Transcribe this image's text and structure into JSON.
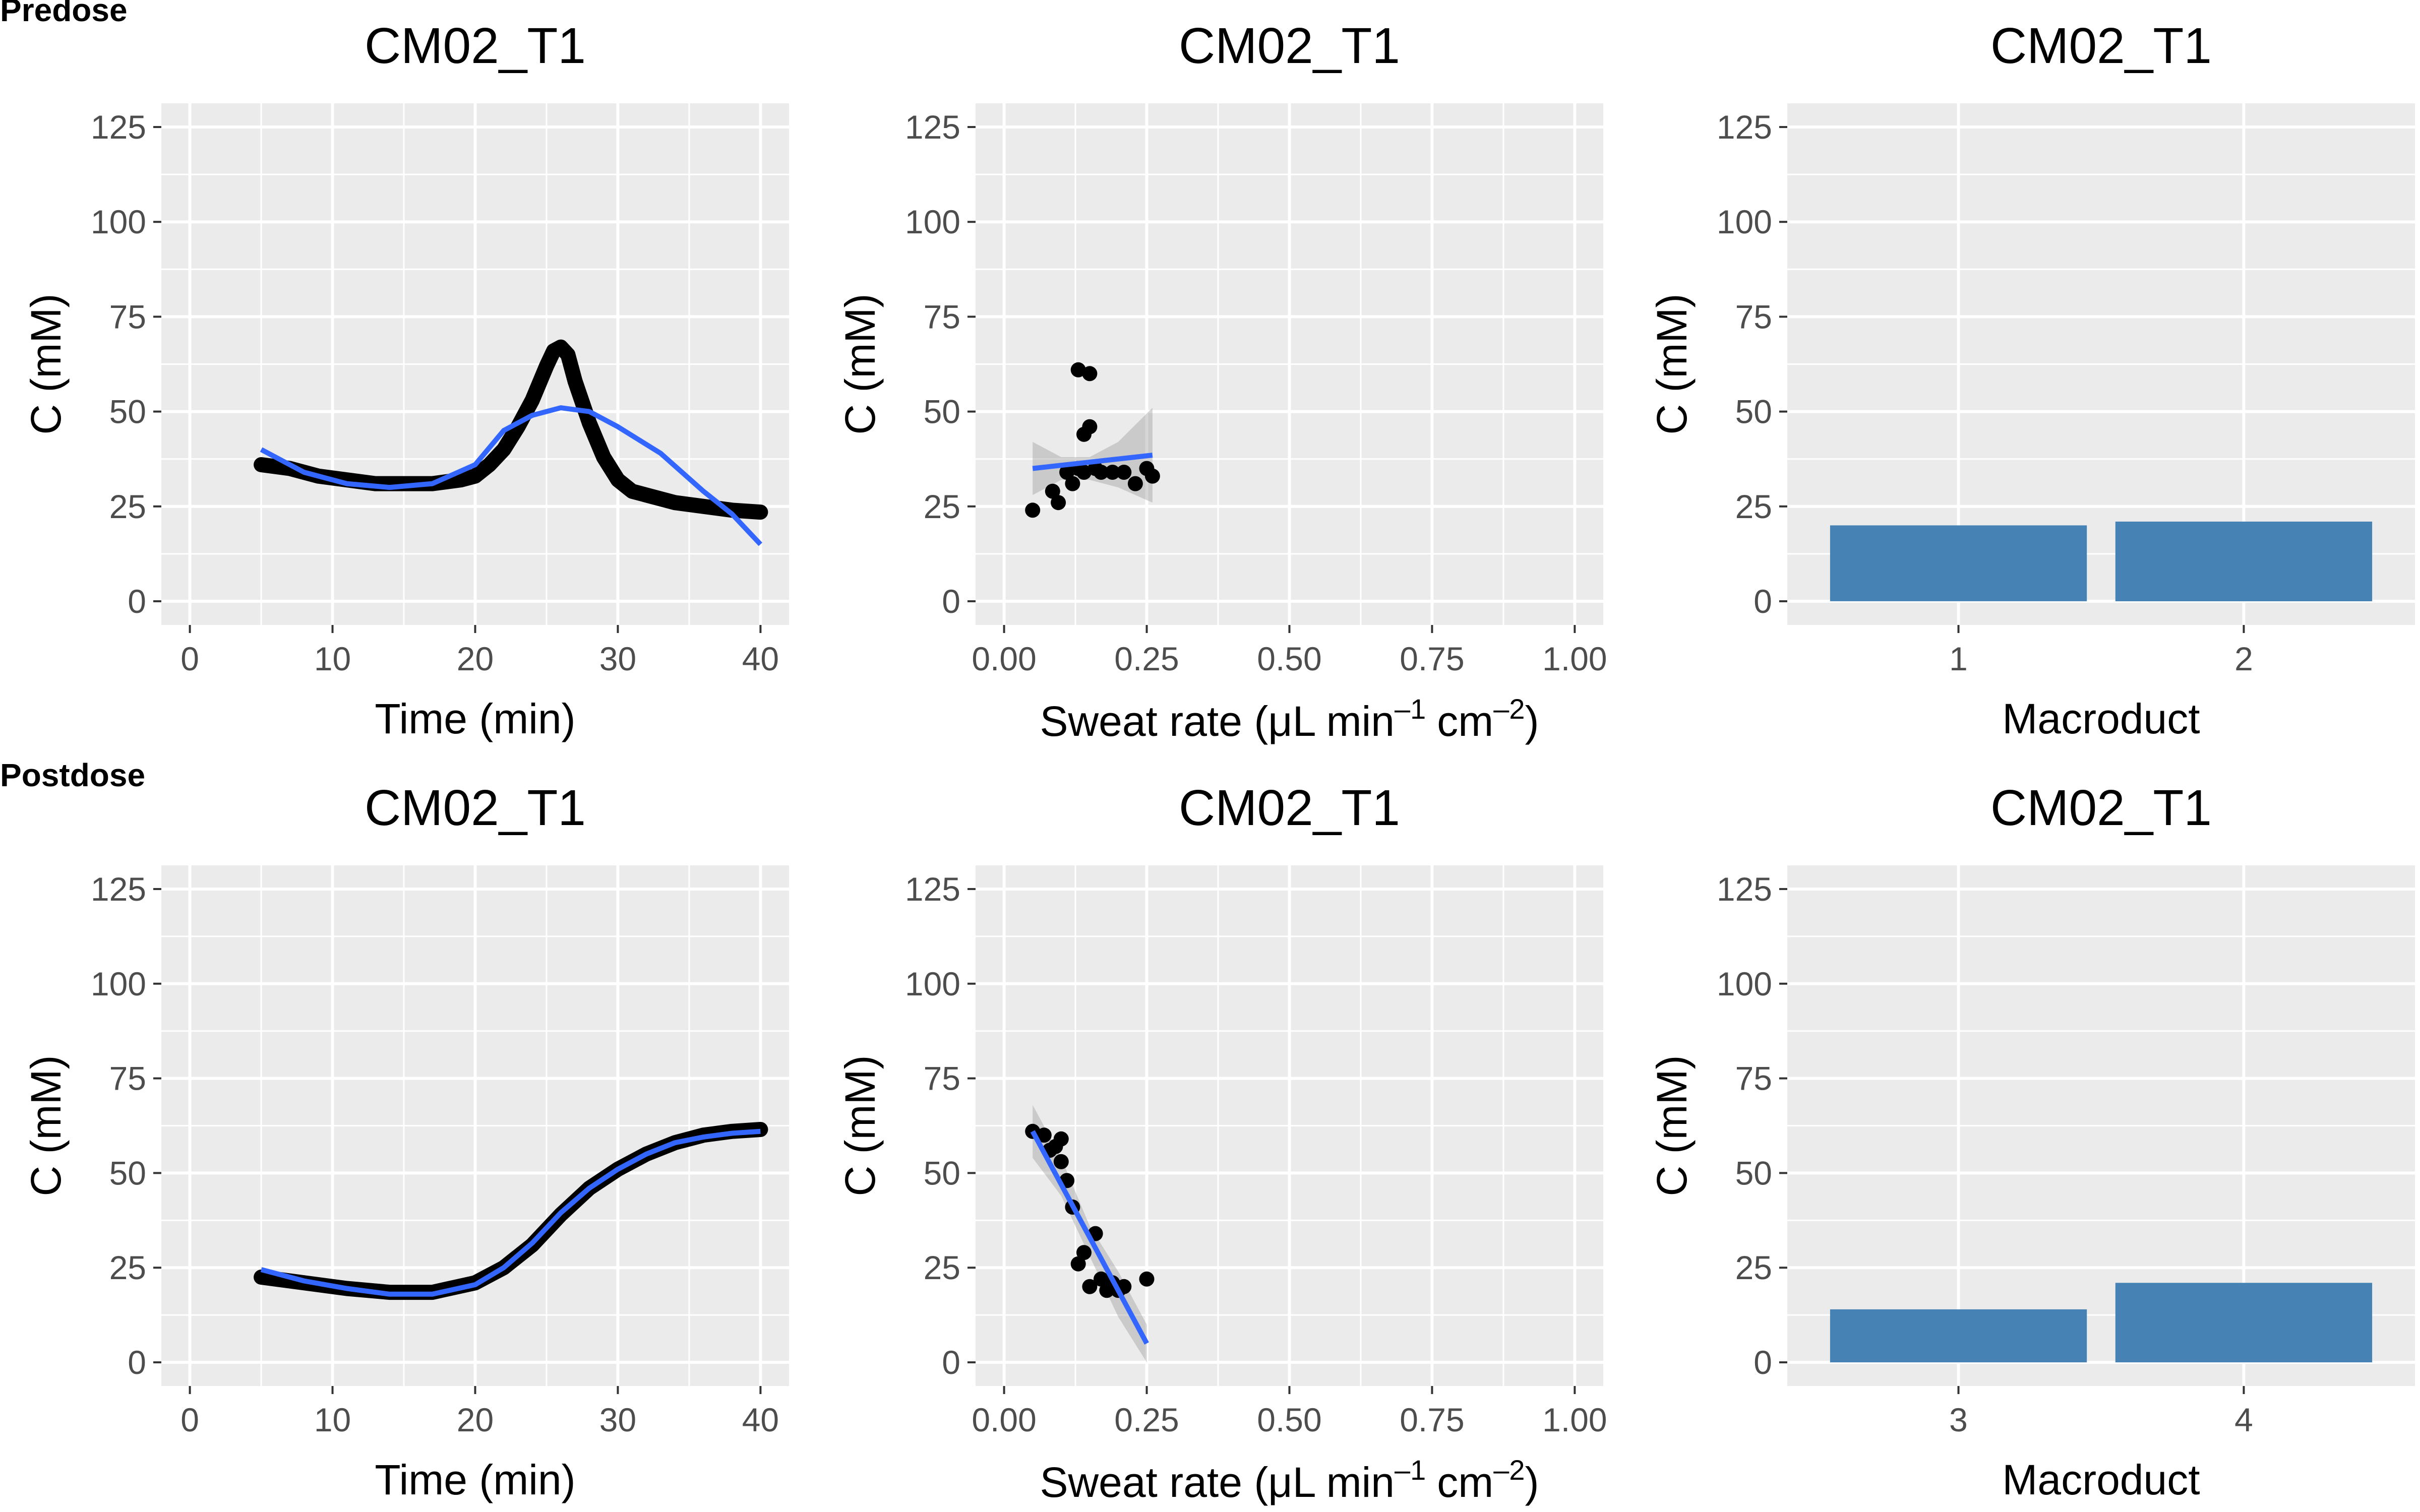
{
  "rows": [
    {
      "label": "Predose"
    },
    {
      "label": "Postdose"
    }
  ],
  "colors": {
    "panel_bg": "#ebebeb",
    "grid": "#ffffff",
    "smooth": "#3366ff",
    "bar": "#4682b4",
    "points": "#000000",
    "ribbon": "#999999",
    "tick": "#4d4d4d"
  },
  "chart_data": [
    {
      "id": "pre-time",
      "row": 0,
      "col": 0,
      "type": "line",
      "title": "CM02_T1",
      "xlabel": "Time (min)",
      "ylabel": "C (mM)",
      "xlim": [
        0,
        40
      ],
      "ylim": [
        0,
        125
      ],
      "x_ticks": [
        0,
        10,
        20,
        30,
        40
      ],
      "y_ticks": [
        0,
        25,
        50,
        75,
        100,
        125
      ],
      "grid": true,
      "series": [
        {
          "role": "observed",
          "x": [
            5,
            7,
            9,
            11,
            13,
            15,
            17,
            19,
            20,
            21,
            22,
            23,
            24,
            25,
            25.5,
            26,
            26.5,
            27,
            28,
            29,
            30,
            31,
            32,
            34,
            36,
            38,
            40
          ],
          "y": [
            36,
            35,
            33,
            32,
            31,
            31,
            31,
            32,
            33,
            36,
            40,
            46,
            53,
            62,
            66,
            67,
            65,
            58,
            47,
            38,
            32,
            29,
            28,
            26,
            25,
            24,
            23.5
          ]
        },
        {
          "role": "smooth",
          "x": [
            5,
            8,
            11,
            14,
            17,
            20,
            22,
            24,
            26,
            28,
            30,
            33,
            36,
            38,
            40
          ],
          "y": [
            40,
            34,
            31,
            30,
            31,
            36,
            45,
            49,
            51,
            50,
            46,
            39,
            29,
            23,
            15
          ]
        }
      ]
    },
    {
      "id": "pre-sweat",
      "row": 0,
      "col": 1,
      "type": "scatter",
      "title": "CM02_T1",
      "xlabel": "Sweat rate (μL min",
      "xlabel_parts": [
        "–1",
        "cm",
        "–2"
      ],
      "ylabel": "C (mM)",
      "xlim": [
        0,
        1
      ],
      "ylim": [
        0,
        125
      ],
      "x_ticks": [
        0,
        0.25,
        0.5,
        0.75,
        1
      ],
      "x_tick_labels": [
        "0.00",
        "0.25",
        "0.50",
        "0.75",
        "1.00"
      ],
      "y_ticks": [
        0,
        25,
        50,
        75,
        100,
        125
      ],
      "grid": true,
      "points": {
        "x": [
          0.05,
          0.085,
          0.095,
          0.11,
          0.12,
          0.13,
          0.14,
          0.15,
          0.17,
          0.19,
          0.21,
          0.23,
          0.25,
          0.26,
          0.13,
          0.15,
          0.14,
          0.16
        ],
        "y": [
          24,
          29,
          26,
          34,
          31,
          61,
          34,
          60,
          34,
          34,
          34,
          31,
          35,
          33,
          35,
          46,
          44,
          35
        ]
      },
      "fit": {
        "x": [
          0.05,
          0.26
        ],
        "y": [
          35,
          38.5
        ]
      },
      "ribbon": {
        "x": [
          0.05,
          0.1,
          0.15,
          0.2,
          0.26
        ],
        "lower": [
          28,
          32,
          32,
          30,
          26
        ],
        "upper": [
          42,
          38,
          38,
          42,
          51
        ]
      }
    },
    {
      "id": "pre-macro",
      "row": 0,
      "col": 2,
      "type": "bar",
      "title": "CM02_T1",
      "xlabel": "Macroduct",
      "ylabel": "C (mM)",
      "categories": [
        "1",
        "2"
      ],
      "values": [
        20,
        21
      ],
      "ylim": [
        0,
        125
      ],
      "y_ticks": [
        0,
        25,
        50,
        75,
        100,
        125
      ],
      "grid": true
    },
    {
      "id": "post-time",
      "row": 1,
      "col": 0,
      "type": "line",
      "title": "CM02_T1",
      "xlabel": "Time (min)",
      "ylabel": "C (mM)",
      "xlim": [
        0,
        40
      ],
      "ylim": [
        0,
        125
      ],
      "x_ticks": [
        0,
        10,
        20,
        30,
        40
      ],
      "y_ticks": [
        0,
        25,
        50,
        75,
        100,
        125
      ],
      "grid": true,
      "series": [
        {
          "role": "observed",
          "x": [
            5,
            8,
            11,
            14,
            17,
            20,
            22,
            24,
            26,
            28,
            30,
            32,
            34,
            36,
            38,
            40
          ],
          "y": [
            22.5,
            21,
            19.5,
            18.5,
            18.5,
            21,
            25,
            31,
            39,
            46,
            51,
            55,
            58,
            60,
            61,
            61.5
          ]
        },
        {
          "role": "smooth",
          "x": [
            5,
            8,
            11,
            14,
            17,
            20,
            22,
            24,
            26,
            28,
            30,
            32,
            34,
            36,
            38,
            40
          ],
          "y": [
            24.5,
            21.5,
            19.5,
            18,
            18,
            20.5,
            25,
            31.5,
            39.5,
            46,
            51,
            55,
            58,
            59.5,
            60.5,
            61
          ]
        }
      ]
    },
    {
      "id": "post-sweat",
      "row": 1,
      "col": 1,
      "type": "scatter",
      "title": "CM02_T1",
      "xlabel": "Sweat rate (μL min",
      "xlabel_parts": [
        "–1",
        "cm",
        "–2"
      ],
      "ylabel": "C (mM)",
      "xlim": [
        0,
        1
      ],
      "ylim": [
        0,
        125
      ],
      "x_ticks": [
        0,
        0.25,
        0.5,
        0.75,
        1
      ],
      "x_tick_labels": [
        "0.00",
        "0.25",
        "0.50",
        "0.75",
        "1.00"
      ],
      "y_ticks": [
        0,
        25,
        50,
        75,
        100,
        125
      ],
      "grid": true,
      "points": {
        "x": [
          0.05,
          0.07,
          0.08,
          0.09,
          0.1,
          0.11,
          0.12,
          0.13,
          0.15,
          0.16,
          0.17,
          0.18,
          0.19,
          0.2,
          0.21,
          0.25,
          0.14,
          0.1
        ],
        "y": [
          61,
          60,
          56,
          57,
          53,
          48,
          41,
          26,
          20,
          34,
          22,
          19,
          21,
          19,
          20,
          22,
          29,
          59
        ]
      },
      "fit": {
        "x": [
          0.05,
          0.25
        ],
        "y": [
          61,
          5
        ]
      },
      "ribbon": {
        "x": [
          0.05,
          0.1,
          0.15,
          0.2,
          0.25
        ],
        "lower": [
          54,
          44,
          28,
          12,
          0
        ],
        "upper": [
          68,
          54,
          36,
          24,
          10
        ]
      }
    },
    {
      "id": "post-macro",
      "row": 1,
      "col": 2,
      "type": "bar",
      "title": "CM02_T1",
      "xlabel": "Macroduct",
      "ylabel": "C (mM)",
      "categories": [
        "3",
        "4"
      ],
      "values": [
        14,
        21
      ],
      "ylim": [
        0,
        125
      ],
      "y_ticks": [
        0,
        25,
        50,
        75,
        100,
        125
      ],
      "grid": true
    }
  ]
}
